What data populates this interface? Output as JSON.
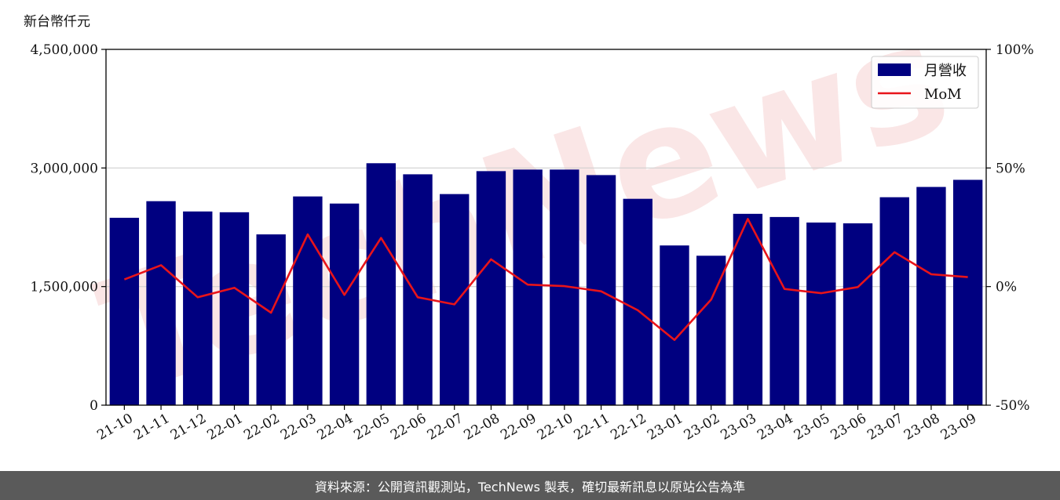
{
  "watermark": "TechNews",
  "footer_text": "資料來源：公開資訊觀測站，TechNews 製表，確切最新訊息以原站公告為準",
  "chart_data": {
    "type": "bar",
    "unit_label": "新台幣仟元",
    "categories": [
      "21-10",
      "21-11",
      "21-12",
      "22-01",
      "22-02",
      "22-03",
      "22-04",
      "22-05",
      "22-06",
      "22-07",
      "22-08",
      "22-09",
      "22-10",
      "22-11",
      "22-12",
      "23-01",
      "23-02",
      "23-03",
      "23-04",
      "23-05",
      "23-06",
      "23-07",
      "23-08",
      "23-09"
    ],
    "series": [
      {
        "name": "月營收",
        "type": "bar",
        "axis": "left",
        "color": "#000080",
        "values": [
          2370000,
          2580000,
          2450000,
          2440000,
          2160000,
          2640000,
          2550000,
          3060000,
          2920000,
          2670000,
          2960000,
          2980000,
          2980000,
          2910000,
          2610000,
          2020000,
          1890000,
          2420000,
          2380000,
          2310000,
          2300000,
          2630000,
          2760000,
          2850000
        ]
      },
      {
        "name": "MoM",
        "type": "line",
        "axis": "right",
        "color": "#e8141a",
        "values": [
          3.0,
          9.0,
          -4.5,
          -0.5,
          -11.0,
          22.0,
          -3.5,
          20.5,
          -4.5,
          -7.5,
          11.5,
          0.8,
          0.2,
          -2.0,
          -10.0,
          -22.5,
          -5.5,
          28.5,
          -1.0,
          -2.8,
          -0.2,
          14.5,
          5.2,
          4.0
        ]
      }
    ],
    "y_left": {
      "ylim": [
        0,
        4500000
      ],
      "ticks": [
        0,
        1500000,
        3000000,
        4500000
      ],
      "tick_labels": [
        "0",
        "1,500,000",
        "3,000,000",
        "4,500,000"
      ]
    },
    "y_right": {
      "ylim": [
        -50,
        100
      ],
      "ticks": [
        -50,
        0,
        50,
        100
      ],
      "tick_labels": [
        "-50%",
        "0%",
        "50%",
        "100%"
      ]
    },
    "grid": "horizontal",
    "legend_position": "top-right"
  }
}
